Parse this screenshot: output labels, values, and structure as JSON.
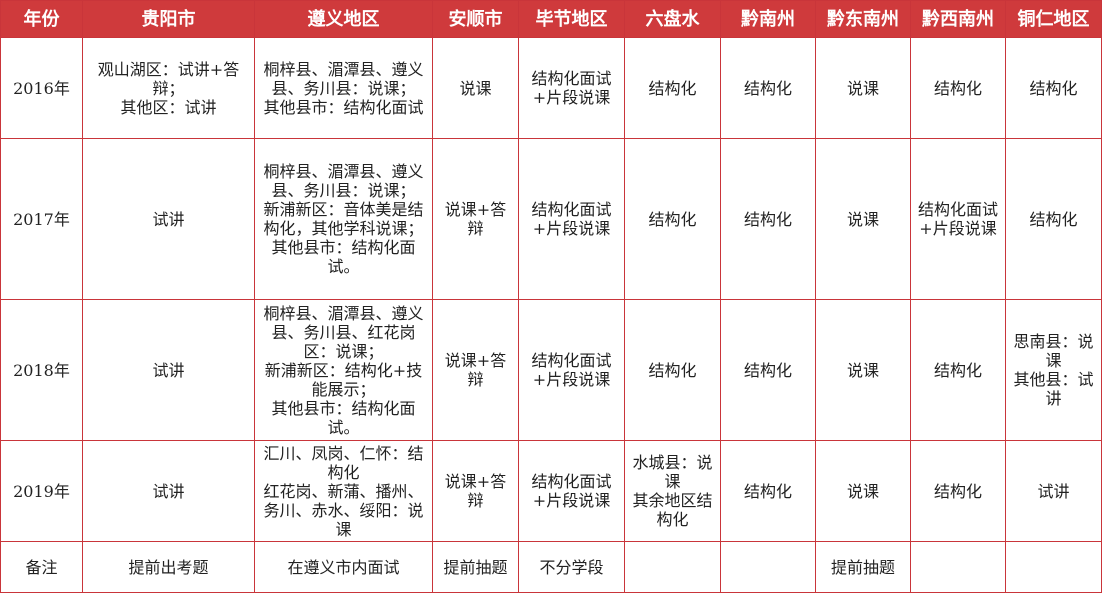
{
  "header": {
    "accent_color": "#cf3a3c",
    "columns": [
      "年份",
      "贵阳市",
      "遵义地区",
      "安顺市",
      "毕节地区",
      "六盘水",
      "黔南州",
      "黔东南州",
      "黔西南州",
      "铜仁地区"
    ]
  },
  "rows": [
    [
      "2016年",
      "观山湖区：试讲+答辩；\n其他区：试讲",
      "桐梓县、湄潭县、遵义县、务川县：说课；\n其他县市：结构化面试",
      "说课",
      "结构化面试\n+片段说课",
      "结构化",
      "结构化",
      "说课",
      "结构化",
      "结构化"
    ],
    [
      "2017年",
      "试讲",
      "桐梓县、湄潭县、遵义县、务川县：说课；\n新浦新区：音体美是结构化，其他学科说课；\n其他县市：结构化面试。",
      "说课+答辩",
      "结构化面试\n+片段说课",
      "结构化",
      "结构化",
      "说课",
      "结构化面试\n+片段说课",
      "结构化"
    ],
    [
      "2018年",
      "试讲",
      "桐梓县、湄潭县、遵义县、务川县、红花岗区：说课；\n新浦新区：结构化+技能展示；\n其他县市：结构化面试。",
      "说课+答辩",
      "结构化面试\n+片段说课",
      "结构化",
      "结构化",
      "说课",
      "结构化",
      "思南县：说课\n其他县：试讲"
    ],
    [
      "2019年",
      "试讲",
      "汇川、凤岗、仁怀：结构化\n红花岗、新蒲、播州、务川、赤水、绥阳：说课",
      "说课+答辩",
      "结构化面试\n+片段说课",
      "水城县：说课\n其余地区结构化",
      "结构化",
      "说课",
      "结构化",
      "试讲"
    ],
    [
      "备注",
      "提前出考题",
      "在遵义市内面试",
      "提前抽题",
      "不分学段",
      "",
      "",
      "提前抽题",
      "",
      ""
    ]
  ]
}
